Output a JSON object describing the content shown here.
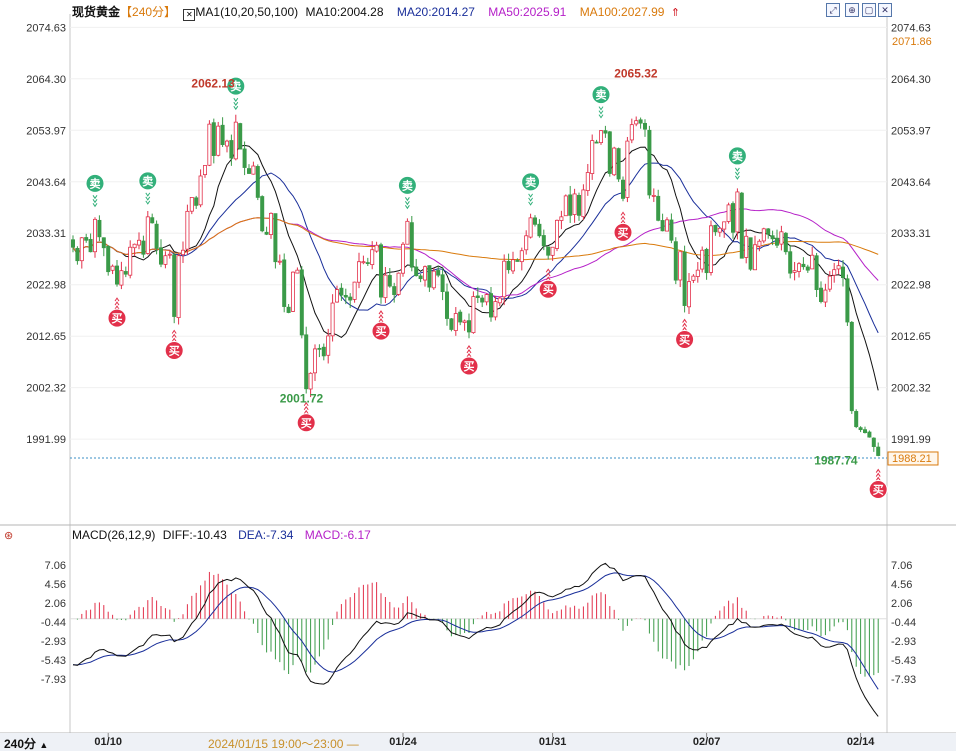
{
  "header": {
    "symbol": "现货黄金",
    "period": "【240分】",
    "ma_params": "MA1(10,20,50,100)",
    "ma10": "MA10:2004.28",
    "ma20": "MA20:2014.27",
    "ma50": "MA50:2025.91",
    "ma100": "MA100:2027.99",
    "icons": [
      "arrow-up-icon",
      "expand-icon",
      "fit-icon",
      "window-icon",
      "close-icon"
    ]
  },
  "macd_header": {
    "title": "MACD(26,12,9)",
    "diff": "DIFF:-10.43",
    "dea": "DEA:-7.34",
    "macd": "MACD:-6.17"
  },
  "bottom_bar": {
    "period_button": "240分",
    "cursor_time": "2024/01/15  19:00～23:00  —"
  },
  "colors": {
    "up": "#e2304a",
    "down": "#3a9a48",
    "ma10": "#111111",
    "ma20": "#1a2f9a",
    "ma50": "#b520c8",
    "ma100": "#d97a0c",
    "diff": "#111111",
    "dea": "#1a2f9a",
    "buy_badge": "#e2304a",
    "sell_badge": "#32b07a"
  },
  "chart_data": [
    {
      "type": "candlestick",
      "title": "现货黄金 240分",
      "y_ticks": [
        "2074.63",
        "2064.30",
        "2053.97",
        "2043.64",
        "2033.31",
        "2022.98",
        "2012.65",
        "2002.32",
        "1991.99"
      ],
      "ylim": [
        1986.4,
        2075.5
      ],
      "x_ticks": [
        "01/10",
        "01/24",
        "01/31",
        "02/07",
        "02/14"
      ],
      "last_price": "2071.86",
      "current_price": "1988.21",
      "annotations": {
        "high": "2062.13",
        "low": "2001.72",
        "high2": "2065.32",
        "low2": "1987.74"
      },
      "close": [
        2030.5,
        2027.8,
        2032.4,
        2031.9,
        2029.6,
        2036.1,
        2032.6,
        2030.4,
        2025.6,
        2026.7,
        2023.1,
        2025.8,
        2025.1,
        2030.5,
        2031.1,
        2031.9,
        2029.1,
        2036.6,
        2035.4,
        2030.3,
        2027.1,
        2028.8,
        2029.1,
        2016.6,
        2028.8,
        2029.9,
        2037.7,
        2040.5,
        2038.9,
        2044.8,
        2046.9,
        2055.2,
        2048.9,
        2054.8,
        2051.1,
        2051.8,
        2048.4,
        2055.6,
        2050.2,
        2046.5,
        2045.3,
        2046.8,
        2040.5,
        2033.8,
        2033.1,
        2037.3,
        2027.6,
        2027.7,
        2018.6,
        2017.4,
        2025.5,
        2025.9,
        2012.9,
        2002.1,
        2005.2,
        2010.1,
        2010.2,
        2008.7,
        2012.7,
        2019.3,
        2022.0,
        2020.9,
        2020.5,
        2019.9,
        2023.5,
        2027.6,
        2027.6,
        2027.3,
        2030.0,
        2030.9,
        2020.5,
        2024.9,
        2022.7,
        2021.0,
        2025.3,
        2031.1,
        2035.7,
        2026.5,
        2024.8,
        2024.2,
        2026.6,
        2022.5,
        2025.7,
        2024.9,
        2021.6,
        2016.2,
        2014.0,
        2017.2,
        2015.5,
        2015.7,
        2013.5,
        2020.6,
        2020.4,
        2019.5,
        2021.0,
        2016.5,
        2019.6,
        2020.3,
        2027.7,
        2026.0,
        2028.0,
        2027.7,
        2029.8,
        2032.8,
        2036.4,
        2035.1,
        2032.8,
        2030.8,
        2028.9,
        2030.5,
        2035.9,
        2036.6,
        2040.8,
        2036.9,
        2041.2,
        2036.9,
        2042.0,
        2045.5,
        2051.9,
        2051.6,
        2053.9,
        2053.4,
        2045.3,
        2050.4,
        2044.2,
        2040.3,
        2051.8,
        2055.1,
        2055.9,
        2055.4,
        2054.2,
        2041.0,
        2040.9,
        2035.9,
        2033.8,
        2036.0,
        2031.9,
        2023.9,
        2029.6,
        2018.8,
        2023.6,
        2024.7,
        2025.9,
        2029.9,
        2025.4,
        2034.8,
        2033.6,
        2034.3,
        2035.6,
        2039.0,
        2033.5,
        2041.6,
        2028.3,
        2032.7,
        2026.1,
        2031.0,
        2031.7,
        2034.2,
        2033.1,
        2032.2,
        2030.9,
        2033.6,
        2029.6,
        2025.3,
        2025.8,
        2027.2,
        2026.6,
        2025.9,
        2028.9,
        2022.0,
        2019.6,
        2021.9,
        2024.7,
        2026.0,
        2026.8,
        2024.4,
        2015.5,
        1997.7,
        1994.5,
        1993.9,
        1993.3,
        1992.4,
        1990.5,
        1988.7
      ]
    },
    {
      "type": "macd",
      "title": "MACD(26,12,9)",
      "y_ticks": [
        "7.06",
        "4.56",
        "2.06",
        "-0.44",
        "-2.93",
        "-5.43",
        "-7.93"
      ],
      "ylim": [
        -10.0,
        8.0
      ],
      "diff": [
        -6.04,
        -6.11,
        -5.66,
        -5.28,
        -5.09,
        -4.39,
        -4.09,
        -4.04,
        -4.36,
        -4.5,
        -4.85,
        -4.88,
        -4.92,
        -4.49,
        -4.07,
        -3.65,
        -3.48,
        -2.71,
        -2.15,
        -2.08,
        -2.23,
        -2.2,
        -2.15,
        -3.0,
        -2.74,
        -2.42,
        -1.52,
        -0.6,
        0.02,
        1.06,
        1.99,
        3.33,
        3.85,
        4.66,
        4.95,
        5.16,
        4.99,
        5.36,
        5.15,
        4.63,
        4.08,
        3.72,
        2.88,
        1.65,
        0.62,
        0.13,
        -1.04,
        -1.93,
        -3.31,
        -4.46,
        -4.64,
        -4.72,
        -5.73,
        -7.3,
        -8.21,
        -8.44,
        -8.52,
        -8.57,
        -8.26,
        -7.41,
        -6.42,
        -5.68,
        -5.06,
        -4.56,
        -3.86,
        -2.98,
        -2.26,
        -1.67,
        -0.97,
        -0.33,
        -0.64,
        -0.53,
        -0.58,
        -0.75,
        -0.58,
        -0.02,
        0.78,
        0.67,
        0.43,
        0.19,
        0.16,
        -0.15,
        -0.14,
        -0.2,
        -0.48,
        -1.15,
        -1.83,
        -2.02,
        -2.24,
        -2.37,
        -2.61,
        -2.12,
        -1.73,
        -1.48,
        -1.14,
        -1.21,
        -1.03,
        -0.81,
        -0.04,
        0.42,
        0.94,
        1.31,
        1.76,
        2.31,
        3.0,
        3.39,
        3.47,
        3.32,
        3.01,
        2.86,
        3.14,
        3.38,
        3.86,
        3.92,
        4.24,
        4.21,
        4.56,
        5.07,
        5.93,
        6.48,
        6.99,
        7.26,
        6.69,
        6.59,
        5.91,
        5.0,
        5.2,
        5.5,
        5.66,
        5.67,
        5.52,
        4.41,
        3.49,
        2.32,
        1.21,
        0.51,
        -0.35,
        -1.64,
        -2.17,
        -3.35,
        -3.84,
        -4.07,
        -4.08,
        -3.73,
        -3.77,
        -2.99,
        -2.44,
        -1.96,
        -1.47,
        -0.81,
        -0.73,
        0.02,
        -0.5,
        -0.55,
        -1.09,
        -1.12,
        -1.09,
        -0.87,
        -0.78,
        -0.77,
        -0.86,
        -0.72,
        -1.02,
        -1.59,
        -1.99,
        -2.17,
        -2.35,
        -2.54,
        -2.42,
        -2.94,
        -3.54,
        -3.75,
        -3.7,
        -3.51,
        -3.31,
        -3.35,
        -4.06,
        -6.04,
        -7.79,
        -9.17,
        -10.29,
        -11.2,
        -12.06,
        -12.8
      ]
    }
  ],
  "signals": {
    "buy": "买",
    "sell": "卖"
  }
}
